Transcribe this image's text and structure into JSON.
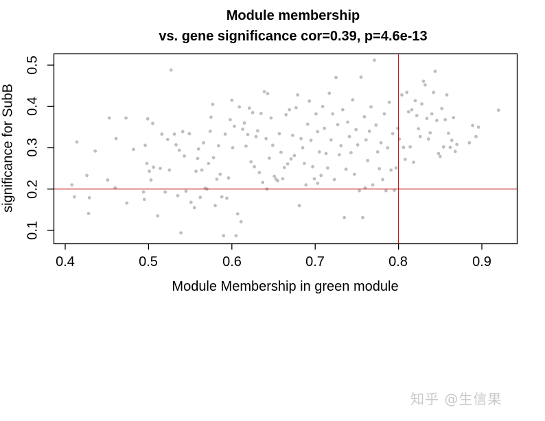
{
  "title": {
    "line1": "Module membership",
    "line2": "vs. gene significance cor=0.39, p=4.6e-13"
  },
  "xlabel": "Module Membership in green module",
  "ylabel": "significance for SubB",
  "xticks": [
    "0.4",
    "0.5",
    "0.6",
    "0.7",
    "0.8",
    "0.9"
  ],
  "yticks": [
    "0.1",
    "0.2",
    "0.3",
    "0.4",
    "0.5"
  ],
  "watermark": "知乎 @生信果",
  "colors": {
    "points": "#bebebe",
    "reference_lines": "#c00000",
    "axes": "#000000"
  },
  "chart_data": {
    "type": "scatter",
    "title": "Module membership vs. gene significance cor=0.39, p=4.6e-13",
    "xlabel": "Module Membership in green module",
    "ylabel": "significance for SubB",
    "xlim": [
      0.386,
      0.942
    ],
    "ylim": [
      0.069,
      0.528
    ],
    "grid": false,
    "reference_lines": {
      "vertical_x": 0.8,
      "horizontal_y": 0.2
    },
    "correlation": 0.39,
    "p_value": "4.6e-13",
    "points": [
      [
        0.408,
        0.21
      ],
      [
        0.411,
        0.181
      ],
      [
        0.414,
        0.314
      ],
      [
        0.426,
        0.233
      ],
      [
        0.428,
        0.141
      ],
      [
        0.429,
        0.179
      ],
      [
        0.436,
        0.292
      ],
      [
        0.451,
        0.222
      ],
      [
        0.453,
        0.372
      ],
      [
        0.46,
        0.203
      ],
      [
        0.461,
        0.322
      ],
      [
        0.473,
        0.372
      ],
      [
        0.474,
        0.166
      ],
      [
        0.482,
        0.296
      ],
      [
        0.494,
        0.193
      ],
      [
        0.495,
        0.175
      ],
      [
        0.496,
        0.306
      ],
      [
        0.498,
        0.262
      ],
      [
        0.499,
        0.37
      ],
      [
        0.501,
        0.243
      ],
      [
        0.503,
        0.222
      ],
      [
        0.505,
        0.359
      ],
      [
        0.506,
        0.253
      ],
      [
        0.511,
        0.135
      ],
      [
        0.514,
        0.25
      ],
      [
        0.516,
        0.333
      ],
      [
        0.52,
        0.193
      ],
      [
        0.523,
        0.32
      ],
      [
        0.525,
        0.246
      ],
      [
        0.527,
        0.488
      ],
      [
        0.531,
        0.333
      ],
      [
        0.533,
        0.307
      ],
      [
        0.535,
        0.184
      ],
      [
        0.537,
        0.294
      ],
      [
        0.539,
        0.094
      ],
      [
        0.541,
        0.339
      ],
      [
        0.543,
        0.28
      ],
      [
        0.545,
        0.195
      ],
      [
        0.549,
        0.334
      ],
      [
        0.551,
        0.168
      ],
      [
        0.555,
        0.155
      ],
      [
        0.557,
        0.243
      ],
      [
        0.559,
        0.274
      ],
      [
        0.56,
        0.297
      ],
      [
        0.562,
        0.18
      ],
      [
        0.564,
        0.246
      ],
      [
        0.566,
        0.312
      ],
      [
        0.568,
        0.202
      ],
      [
        0.57,
        0.2
      ],
      [
        0.572,
        0.262
      ],
      [
        0.574,
        0.34
      ],
      [
        0.575,
        0.374
      ],
      [
        0.577,
        0.405
      ],
      [
        0.578,
        0.276
      ],
      [
        0.58,
        0.16
      ],
      [
        0.582,
        0.224
      ],
      [
        0.584,
        0.305
      ],
      [
        0.586,
        0.236
      ],
      [
        0.588,
        0.181
      ],
      [
        0.59,
        0.087
      ],
      [
        0.592,
        0.333
      ],
      [
        0.594,
        0.178
      ],
      [
        0.596,
        0.227
      ],
      [
        0.598,
        0.368
      ],
      [
        0.6,
        0.415
      ],
      [
        0.601,
        0.3
      ],
      [
        0.603,
        0.352
      ],
      [
        0.605,
        0.087
      ],
      [
        0.607,
        0.14
      ],
      [
        0.609,
        0.399
      ],
      [
        0.611,
        0.121
      ],
      [
        0.613,
        0.345
      ],
      [
        0.615,
        0.36
      ],
      [
        0.617,
        0.304
      ],
      [
        0.619,
        0.332
      ],
      [
        0.621,
        0.396
      ],
      [
        0.623,
        0.266
      ],
      [
        0.625,
        0.385
      ],
      [
        0.627,
        0.254
      ],
      [
        0.629,
        0.327
      ],
      [
        0.631,
        0.341
      ],
      [
        0.633,
        0.24
      ],
      [
        0.635,
        0.383
      ],
      [
        0.637,
        0.216
      ],
      [
        0.639,
        0.436
      ],
      [
        0.641,
        0.322
      ],
      [
        0.643,
        0.431
      ],
      [
        0.645,
        0.275
      ],
      [
        0.647,
        0.372
      ],
      [
        0.649,
        0.306
      ],
      [
        0.651,
        0.231
      ],
      [
        0.653,
        0.224
      ],
      [
        0.655,
        0.22
      ],
      [
        0.657,
        0.334
      ],
      [
        0.659,
        0.289
      ],
      [
        0.661,
        0.225
      ],
      [
        0.663,
        0.252
      ],
      [
        0.665,
        0.38
      ],
      [
        0.667,
        0.261
      ],
      [
        0.669,
        0.392
      ],
      [
        0.671,
        0.273
      ],
      [
        0.673,
        0.33
      ],
      [
        0.675,
        0.281
      ],
      [
        0.677,
        0.397
      ],
      [
        0.679,
        0.428
      ],
      [
        0.681,
        0.16
      ],
      [
        0.683,
        0.322
      ],
      [
        0.685,
        0.3
      ],
      [
        0.687,
        0.262
      ],
      [
        0.689,
        0.21
      ],
      [
        0.691,
        0.357
      ],
      [
        0.693,
        0.413
      ],
      [
        0.695,
        0.318
      ],
      [
        0.697,
        0.254
      ],
      [
        0.699,
        0.225
      ],
      [
        0.701,
        0.382
      ],
      [
        0.703,
        0.339
      ],
      [
        0.705,
        0.29
      ],
      [
        0.707,
        0.233
      ],
      [
        0.709,
        0.4
      ],
      [
        0.711,
        0.347
      ],
      [
        0.713,
        0.286
      ],
      [
        0.715,
        0.251
      ],
      [
        0.717,
        0.432
      ],
      [
        0.719,
        0.319
      ],
      [
        0.721,
        0.382
      ],
      [
        0.723,
        0.223
      ],
      [
        0.725,
        0.47
      ],
      [
        0.727,
        0.356
      ],
      [
        0.729,
        0.283
      ],
      [
        0.731,
        0.305
      ],
      [
        0.733,
        0.392
      ],
      [
        0.735,
        0.131
      ],
      [
        0.737,
        0.248
      ],
      [
        0.739,
        0.362
      ],
      [
        0.741,
        0.327
      ],
      [
        0.743,
        0.288
      ],
      [
        0.745,
        0.416
      ],
      [
        0.747,
        0.236
      ],
      [
        0.749,
        0.344
      ],
      [
        0.751,
        0.307
      ],
      [
        0.753,
        0.196
      ],
      [
        0.755,
        0.471
      ],
      [
        0.757,
        0.131
      ],
      [
        0.759,
        0.375
      ],
      [
        0.761,
        0.319
      ],
      [
        0.763,
        0.269
      ],
      [
        0.765,
        0.34
      ],
      [
        0.767,
        0.399
      ],
      [
        0.769,
        0.21
      ],
      [
        0.771,
        0.512
      ],
      [
        0.773,
        0.355
      ],
      [
        0.775,
        0.29
      ],
      [
        0.777,
        0.249
      ],
      [
        0.779,
        0.312
      ],
      [
        0.781,
        0.223
      ],
      [
        0.783,
        0.382
      ],
      [
        0.785,
        0.196
      ],
      [
        0.787,
        0.3
      ],
      [
        0.789,
        0.41
      ],
      [
        0.791,
        0.246
      ],
      [
        0.793,
        0.334
      ],
      [
        0.795,
        0.197
      ],
      [
        0.797,
        0.251
      ],
      [
        0.799,
        0.347
      ],
      [
        0.801,
        0.321
      ],
      [
        0.804,
        0.428
      ],
      [
        0.806,
        0.301
      ],
      [
        0.808,
        0.272
      ],
      [
        0.81,
        0.434
      ],
      [
        0.812,
        0.387
      ],
      [
        0.814,
        0.302
      ],
      [
        0.816,
        0.392
      ],
      [
        0.818,
        0.265
      ],
      [
        0.82,
        0.414
      ],
      [
        0.822,
        0.378
      ],
      [
        0.824,
        0.346
      ],
      [
        0.826,
        0.327
      ],
      [
        0.828,
        0.406
      ],
      [
        0.83,
        0.461
      ],
      [
        0.832,
        0.452
      ],
      [
        0.834,
        0.371
      ],
      [
        0.836,
        0.321
      ],
      [
        0.838,
        0.336
      ],
      [
        0.84,
        0.382
      ],
      [
        0.842,
        0.434
      ],
      [
        0.844,
        0.485
      ],
      [
        0.846,
        0.366
      ],
      [
        0.848,
        0.286
      ],
      [
        0.85,
        0.279
      ],
      [
        0.852,
        0.395
      ],
      [
        0.854,
        0.302
      ],
      [
        0.856,
        0.368
      ],
      [
        0.858,
        0.428
      ],
      [
        0.86,
        0.335
      ],
      [
        0.862,
        0.301
      ],
      [
        0.864,
        0.318
      ],
      [
        0.866,
        0.373
      ],
      [
        0.868,
        0.291
      ],
      [
        0.87,
        0.308
      ],
      [
        0.885,
        0.312
      ],
      [
        0.889,
        0.354
      ],
      [
        0.893,
        0.327
      ],
      [
        0.896,
        0.35
      ],
      [
        0.92,
        0.391
      ],
      [
        0.76,
        0.203
      ],
      [
        0.703,
        0.214
      ],
      [
        0.642,
        0.2
      ]
    ]
  }
}
